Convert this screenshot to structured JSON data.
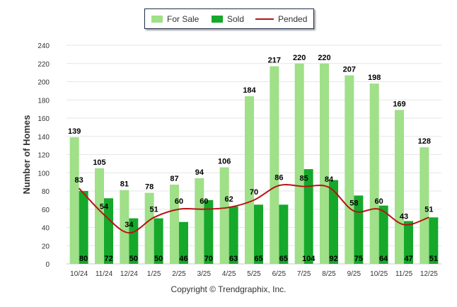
{
  "chart_data": {
    "type": "bar",
    "ylabel": "Number of Homes",
    "xlabel": "",
    "ylim": [
      0,
      240
    ],
    "yticks": [
      0,
      20,
      40,
      60,
      80,
      100,
      120,
      140,
      160,
      180,
      200,
      220,
      240
    ],
    "categories": [
      "10/24",
      "11/24",
      "12/24",
      "1/25",
      "2/25",
      "3/25",
      "4/25",
      "5/25",
      "6/25",
      "7/25",
      "8/25",
      "9/25",
      "10/25",
      "11/25",
      "12/25"
    ],
    "series": [
      {
        "name": "For Sale",
        "type": "bar",
        "color": "#9fe088",
        "values": [
          139,
          105,
          81,
          78,
          87,
          94,
          106,
          184,
          217,
          220,
          220,
          207,
          198,
          169,
          128
        ]
      },
      {
        "name": "Sold",
        "type": "bar",
        "color": "#16a82b",
        "values": [
          80,
          72,
          50,
          50,
          46,
          70,
          63,
          65,
          65,
          104,
          92,
          75,
          64,
          47,
          51
        ]
      },
      {
        "name": "Pended",
        "type": "line",
        "color": "#b81313",
        "values": [
          83,
          54,
          34,
          51,
          60,
          60,
          62,
          70,
          86,
          85,
          84,
          58,
          60,
          43,
          51
        ]
      }
    ],
    "footer": "Copyright © Trendgraphix, Inc."
  }
}
